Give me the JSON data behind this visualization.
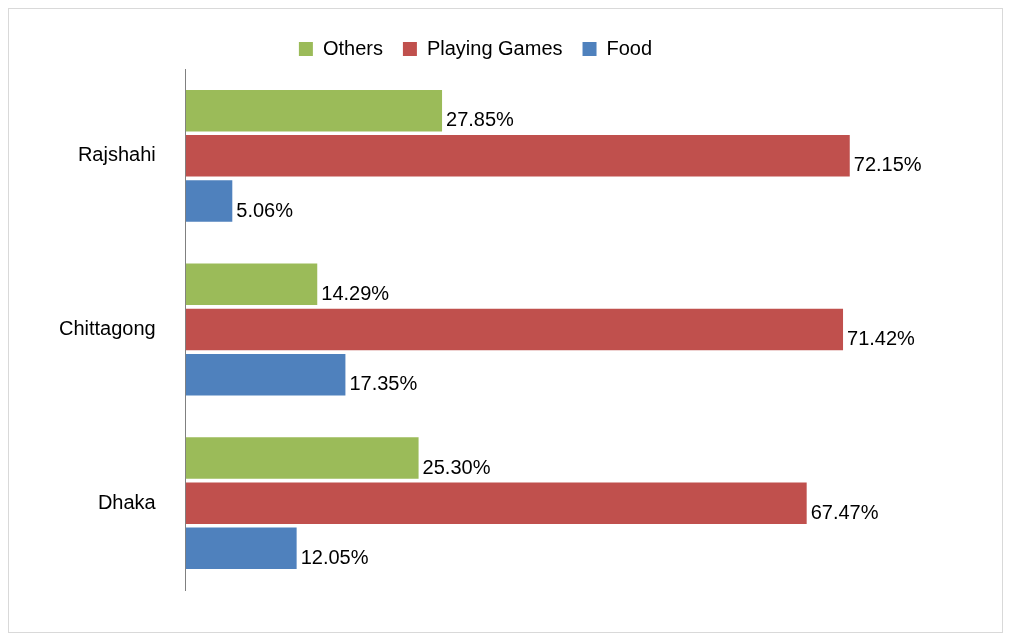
{
  "chart_data": {
    "type": "bar",
    "orientation": "horizontal",
    "categories": [
      "Rajshahi",
      "Chittagong",
      "Dhaka"
    ],
    "series": [
      {
        "name": "Others",
        "color": "#9bbb59",
        "values": [
          27.85,
          14.29,
          25.3
        ],
        "value_labels": [
          "27.85%",
          "14.29%",
          "25.30%"
        ]
      },
      {
        "name": "Playing Games",
        "color": "#c0504d",
        "values": [
          72.15,
          71.42,
          67.47
        ],
        "value_labels": [
          "72.15%",
          "71.42%",
          "67.47%"
        ]
      },
      {
        "name": "Food",
        "color": "#4f81bd",
        "values": [
          5.06,
          17.35,
          12.05
        ],
        "value_labels": [
          "5.06%",
          "17.35%",
          "12.05%"
        ]
      }
    ],
    "legend": "top"
  }
}
